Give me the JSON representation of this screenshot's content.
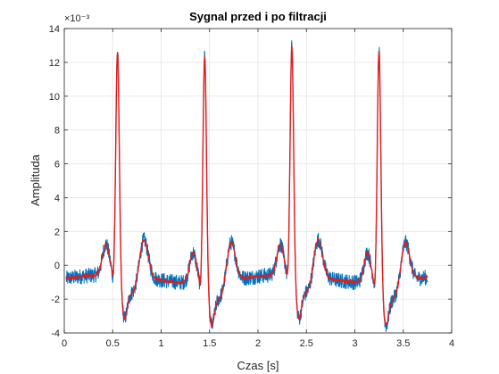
{
  "chart_data": {
    "type": "line",
    "title": "Sygnal przed i po filtracji",
    "xlabel": "Czas [s]",
    "ylabel": "Amplituda",
    "exponent_label": "×10⁻³",
    "xlim": [
      0,
      4
    ],
    "ylim": [
      -4,
      14
    ],
    "y_scale_factor": 0.001,
    "x_ticks": [
      0,
      0.5,
      1,
      1.5,
      2,
      2.5,
      3,
      3.5,
      4
    ],
    "x_tick_labels": [
      "0",
      "0.5",
      "1",
      "1.5",
      "2",
      "2.5",
      "3",
      "3.5",
      "4"
    ],
    "y_ticks": [
      -4,
      -2,
      0,
      2,
      4,
      6,
      8,
      10,
      12,
      14
    ],
    "y_tick_labels": [
      "-4",
      "-2",
      "0",
      "2",
      "4",
      "6",
      "8",
      "10",
      "12",
      "14"
    ],
    "grid": true,
    "legend": "none",
    "colors": {
      "raw": "#0072BD",
      "filtered": "#E41A1C",
      "grid": "#E5E5E5",
      "axis": "#262626"
    },
    "beat_times": [
      0.55,
      1.45,
      2.35,
      3.25
    ],
    "peak_values": [
      12.8,
      13.0,
      13.1,
      13.3
    ],
    "series": [
      {
        "role": "raw",
        "x_start": 0.02,
        "x_end": 3.75,
        "noise_amplitude": 0.45
      },
      {
        "role": "filtered",
        "x_start": 0.02,
        "x_end": 3.75
      }
    ]
  }
}
